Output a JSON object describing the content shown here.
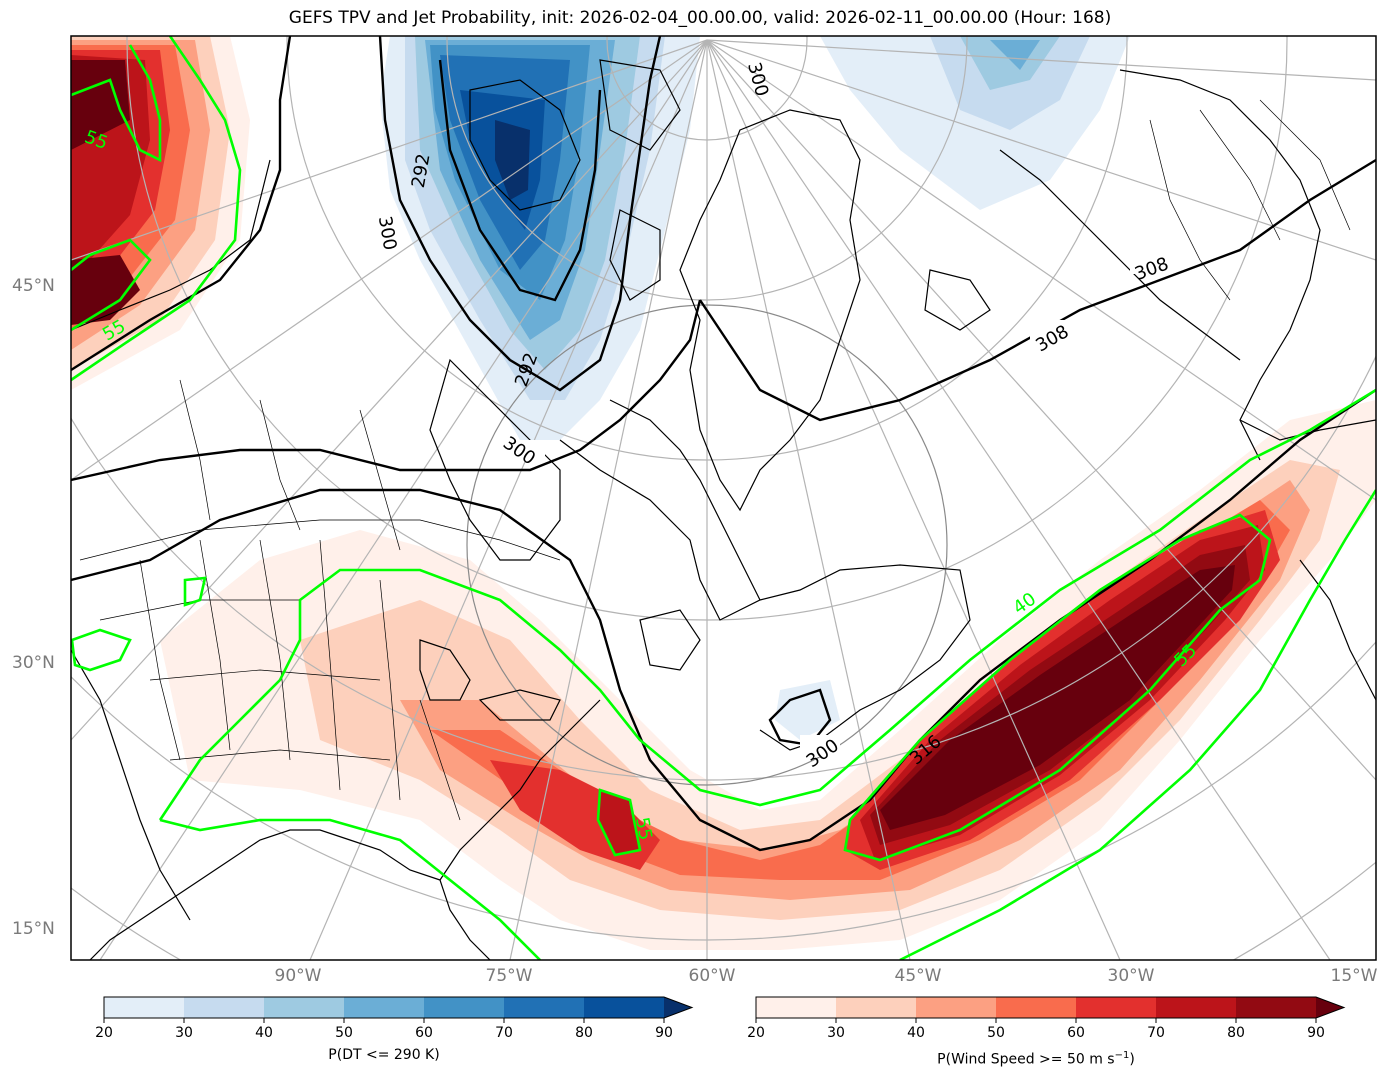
{
  "title": "GEFS TPV and Jet Probability, init: 2026-02-04_00.00.00, valid: 2026-02-11_00.00.00 (Hour: 168)",
  "map": {
    "lat_labels": [
      "45°N",
      "30°N",
      "15°N"
    ],
    "lon_labels": [
      "90°W",
      "75°W",
      "60°W",
      "45°W",
      "30°W",
      "15°W"
    ],
    "contour_labels_theta": [
      "300",
      "300",
      "292",
      "308",
      "308",
      "300",
      "316",
      "300",
      "292"
    ],
    "contour_labels_wind": [
      "55",
      "55",
      "40",
      "55",
      "55"
    ],
    "colors": {
      "jet_contour": "#00ff00",
      "theta_contour": "#000000",
      "grid": "#b4b4b4"
    }
  },
  "colorbar_dt": {
    "label": "P(DT <= 290 K)",
    "ticks": [
      "20",
      "30",
      "40",
      "50",
      "60",
      "70",
      "80",
      "90"
    ],
    "colors": [
      "#e3eef8",
      "#c6dbef",
      "#9ecae1",
      "#6baed6",
      "#4292c6",
      "#2171b5",
      "#08519c",
      "#08306b"
    ]
  },
  "colorbar_wind": {
    "label": "P(Wind Speed >= 50 m s",
    "label_sup": "−1",
    "label_end": ")",
    "ticks": [
      "20",
      "30",
      "40",
      "50",
      "60",
      "70",
      "80",
      "90"
    ],
    "colors": [
      "#fff0ea",
      "#fdd0bc",
      "#fca082",
      "#f96c4d",
      "#e3302e",
      "#bc141a",
      "#920a12",
      "#67000d"
    ]
  },
  "chart_data": {
    "type": "map",
    "title": "GEFS TPV and Jet Probability, init: 2026-02-04_00.00.00, valid: 2026-02-11_00.00.00 (Hour: 168)",
    "projection": "polar stereographic (North America / North Atlantic)",
    "lat_ticks": [
      15,
      30,
      45
    ],
    "lon_ticks": [
      -90,
      -75,
      -60,
      -45,
      -30,
      -15
    ],
    "fields": [
      {
        "name": "P(DT <= 290 K)",
        "colormap": "Blues",
        "levels": [
          20,
          30,
          40,
          50,
          60,
          70,
          80,
          90
        ]
      },
      {
        "name": "P(Wind Speed >= 50 m s^-1)",
        "colormap": "Reds",
        "levels": [
          20,
          30,
          40,
          50,
          60,
          70,
          80,
          90
        ]
      }
    ],
    "contours": {
      "theta_K": [
        292,
        300,
        308,
        316
      ],
      "wind_ms": [
        40,
        55
      ]
    }
  }
}
